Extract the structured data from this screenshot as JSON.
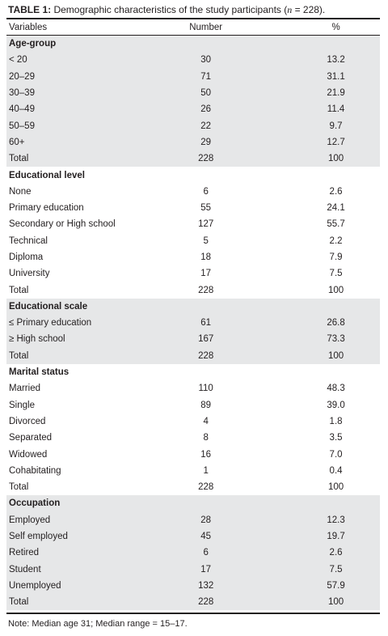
{
  "caption": {
    "label": "TABLE 1:",
    "text_before_n": " Demographic characteristics of the study participants (",
    "n_symbol": "n",
    "text_after_n": " = 228)."
  },
  "columns": [
    "Variables",
    "Number",
    "%"
  ],
  "rows": [
    {
      "kind": "section",
      "shade": true,
      "label": "Age-group",
      "number": "",
      "percent": ""
    },
    {
      "kind": "data",
      "shade": true,
      "label": "< 20",
      "number": "30",
      "percent": "13.2"
    },
    {
      "kind": "data",
      "shade": true,
      "label": "20–29",
      "number": "71",
      "percent": "31.1"
    },
    {
      "kind": "data",
      "shade": true,
      "label": "30–39",
      "number": "50",
      "percent": "21.9"
    },
    {
      "kind": "data",
      "shade": true,
      "label": "40–49",
      "number": "26",
      "percent": "11.4"
    },
    {
      "kind": "data",
      "shade": true,
      "label": "50–59",
      "number": "22",
      "percent": "9.7"
    },
    {
      "kind": "data",
      "shade": true,
      "label": "60+",
      "number": "29",
      "percent": "12.7"
    },
    {
      "kind": "data",
      "shade": true,
      "label": "Total",
      "number": "228",
      "percent": "100"
    },
    {
      "kind": "section",
      "shade": false,
      "label": "Educational level",
      "number": "",
      "percent": ""
    },
    {
      "kind": "data",
      "shade": false,
      "label": "None",
      "number": "6",
      "percent": "2.6"
    },
    {
      "kind": "data",
      "shade": false,
      "label": "Primary education",
      "number": "55",
      "percent": "24.1"
    },
    {
      "kind": "data",
      "shade": false,
      "label": "Secondary or High school",
      "number": "127",
      "percent": "55.7"
    },
    {
      "kind": "data",
      "shade": false,
      "label": "Technical",
      "number": "5",
      "percent": "2.2"
    },
    {
      "kind": "data",
      "shade": false,
      "label": "Diploma",
      "number": "18",
      "percent": "7.9"
    },
    {
      "kind": "data",
      "shade": false,
      "label": "University",
      "number": "17",
      "percent": "7.5"
    },
    {
      "kind": "data",
      "shade": false,
      "label": "Total",
      "number": "228",
      "percent": "100"
    },
    {
      "kind": "section",
      "shade": true,
      "label": "Educational scale",
      "number": "",
      "percent": ""
    },
    {
      "kind": "data",
      "shade": true,
      "label": "≤ Primary education",
      "number": "61",
      "percent": "26.8"
    },
    {
      "kind": "data",
      "shade": true,
      "label": "≥ High school",
      "number": "167",
      "percent": "73.3"
    },
    {
      "kind": "data",
      "shade": true,
      "label": "Total",
      "number": "228",
      "percent": "100"
    },
    {
      "kind": "section",
      "shade": false,
      "label": "Marital status",
      "number": "",
      "percent": ""
    },
    {
      "kind": "data",
      "shade": false,
      "label": "Married",
      "number": "110",
      "percent": "48.3"
    },
    {
      "kind": "data",
      "shade": false,
      "label": "Single",
      "number": "89",
      "percent": "39.0"
    },
    {
      "kind": "data",
      "shade": false,
      "label": "Divorced",
      "number": "4",
      "percent": "1.8"
    },
    {
      "kind": "data",
      "shade": false,
      "label": "Separated",
      "number": "8",
      "percent": "3.5"
    },
    {
      "kind": "data",
      "shade": false,
      "label": "Widowed",
      "number": "16",
      "percent": "7.0"
    },
    {
      "kind": "data",
      "shade": false,
      "label": "Cohabitating",
      "number": "1",
      "percent": "0.4"
    },
    {
      "kind": "data",
      "shade": false,
      "label": "Total",
      "number": "228",
      "percent": "100"
    },
    {
      "kind": "section",
      "shade": true,
      "label": "Occupation",
      "number": "",
      "percent": ""
    },
    {
      "kind": "data",
      "shade": true,
      "label": "Employed",
      "number": "28",
      "percent": "12.3"
    },
    {
      "kind": "data",
      "shade": true,
      "label": "Self employed",
      "number": "45",
      "percent": "19.7"
    },
    {
      "kind": "data",
      "shade": true,
      "label": "Retired",
      "number": "6",
      "percent": "2.6"
    },
    {
      "kind": "data",
      "shade": true,
      "label": "Student",
      "number": "17",
      "percent": "7.5"
    },
    {
      "kind": "data",
      "shade": true,
      "label": "Unemployed",
      "number": "132",
      "percent": "57.9"
    },
    {
      "kind": "data",
      "shade": true,
      "label": "Total",
      "number": "228",
      "percent": "100"
    }
  ],
  "note": "Note: Median age 31; Median range = 15–17.",
  "colors": {
    "shade": "#e6e7e8",
    "text": "#231f20",
    "rule": "#231f20"
  }
}
